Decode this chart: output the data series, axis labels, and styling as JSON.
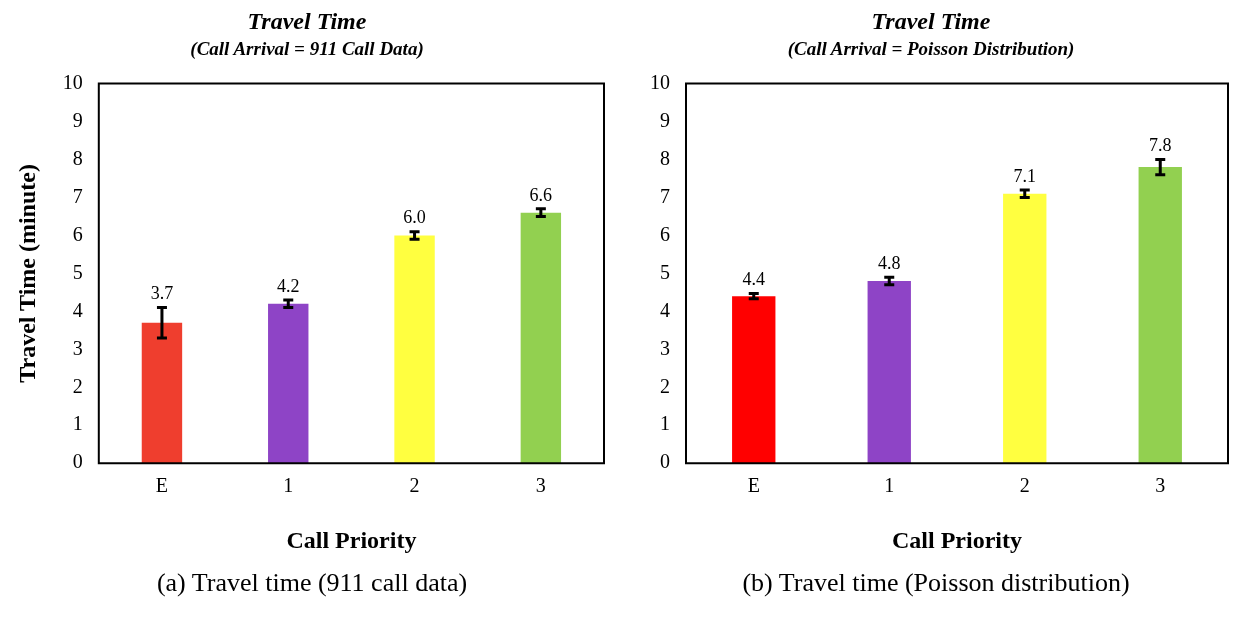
{
  "chart_data": [
    {
      "type": "bar",
      "title": "Travel Time",
      "subtitle": "(Call Arrival = 911 Call Data)",
      "xlabel": "Call Priority",
      "ylabel": "Travel Time (minute)",
      "categories": [
        "E",
        "1",
        "2",
        "3"
      ],
      "values": [
        3.7,
        4.2,
        6.0,
        6.6
      ],
      "colors": [
        "#ef3e2e",
        "#8e44c6",
        "#ffff40",
        "#92d050"
      ],
      "errors": [
        [
          3.3,
          4.1
        ],
        0.1,
        0.1,
        0.1
      ],
      "value_labels": [
        "3.7",
        "4.2",
        "6.0",
        "6.6"
      ],
      "ylim": [
        0,
        10
      ],
      "yticks": [
        0,
        1,
        2,
        3,
        4,
        5,
        6,
        7,
        8,
        9,
        10
      ],
      "grid": false,
      "legend": false,
      "annotations": [
        "(a) Travel time (911 call data)"
      ]
    },
    {
      "type": "bar",
      "title": "Travel Time",
      "subtitle": "(Call Arrival = Poisson Distribution)",
      "xlabel": "Call Priority",
      "categories": [
        "E",
        "1",
        "2",
        "3"
      ],
      "values": [
        4.4,
        4.8,
        7.1,
        7.8
      ],
      "colors": [
        "#ff0000",
        "#8e44c6",
        "#ffff40",
        "#92d050"
      ],
      "errors": [
        0.07,
        0.1,
        0.1,
        0.2
      ],
      "value_labels": [
        "4.4",
        "4.8",
        "7.1",
        "7.8"
      ],
      "ylim": [
        0,
        10
      ],
      "yticks": [
        0,
        1,
        2,
        3,
        4,
        5,
        6,
        7,
        8,
        9,
        10
      ],
      "grid": false,
      "legend": false,
      "annotations": [
        "(b) Travel time (Poisson distribution)"
      ]
    }
  ]
}
